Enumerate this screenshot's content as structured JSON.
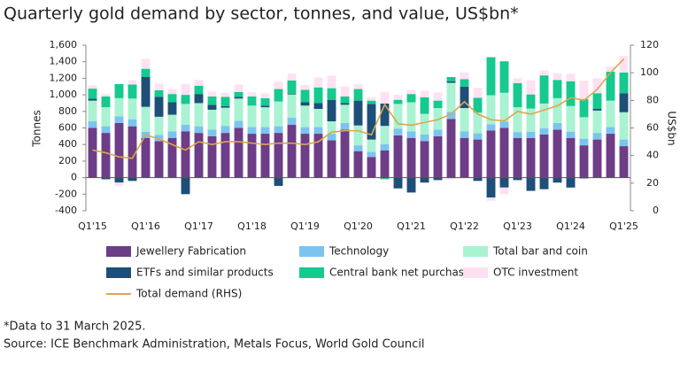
{
  "chart_data": {
    "type": "bar",
    "title": "Quarterly gold demand by sector, tonnes, and value, US$bn*",
    "ylabel": "Tonnes",
    "y2label": "US$bn",
    "categories": [
      "Q1'15",
      null,
      null,
      null,
      "Q1'16",
      null,
      null,
      null,
      "Q1'17",
      null,
      null,
      null,
      "Q1'18",
      null,
      null,
      null,
      "Q1'19",
      null,
      null,
      null,
      "Q1'20",
      null,
      null,
      null,
      "Q1'21",
      null,
      null,
      null,
      "Q1'22",
      null,
      null,
      null,
      "Q1'23",
      null,
      null,
      null,
      "Q1'24",
      null,
      null,
      null,
      "Q1'25"
    ],
    "ylim": [
      -400,
      1600
    ],
    "yticks": [
      -400,
      -200,
      0,
      200,
      400,
      600,
      800,
      {
        "value": 1000,
        "label": "1,000"
      },
      {
        "value": 1200,
        "label": "1,200"
      },
      {
        "value": 1400,
        "label": "1,400"
      },
      {
        "value": 1600,
        "label": "1,600"
      }
    ],
    "y2lim": [
      0,
      120
    ],
    "y2ticks": [
      0,
      20,
      40,
      60,
      80,
      100,
      120
    ],
    "series": [
      {
        "name": "Jewellery Fabrication",
        "color": "#6d3d87",
        "values": [
          600,
          540,
          660,
          620,
          480,
          440,
          480,
          560,
          540,
          500,
          540,
          600,
          530,
          530,
          540,
          640,
          530,
          530,
          450,
          580,
          320,
          250,
          330,
          510,
          480,
          440,
          500,
          710,
          480,
          460,
          570,
          600,
          480,
          480,
          520,
          580,
          480,
          390,
          460,
          530,
          380
        ]
      },
      {
        "name": "Technology",
        "color": "#7cc4f0",
        "values": [
          80,
          80,
          80,
          85,
          75,
          75,
          80,
          80,
          80,
          80,
          85,
          85,
          80,
          80,
          80,
          85,
          80,
          80,
          80,
          80,
          70,
          60,
          75,
          80,
          80,
          80,
          80,
          85,
          80,
          75,
          75,
          75,
          70,
          75,
          75,
          80,
          75,
          80,
          80,
          80,
          80
        ]
      },
      {
        "name": "Total bar and coin",
        "color": "#a9f2d2",
        "values": [
          250,
          230,
          220,
          250,
          300,
          220,
          200,
          250,
          280,
          240,
          220,
          270,
          260,
          240,
          300,
          280,
          260,
          220,
          150,
          220,
          240,
          150,
          220,
          300,
          350,
          250,
          260,
          350,
          280,
          250,
          350,
          350,
          300,
          280,
          300,
          300,
          310,
          260,
          270,
          320,
          330
        ]
      },
      {
        "name": "ETFs and similar products",
        "color": "#1d4f78",
        "values": [
          25,
          -20,
          -60,
          -40,
          360,
          240,
          150,
          -200,
          110,
          60,
          20,
          20,
          0,
          20,
          -100,
          10,
          40,
          70,
          260,
          20,
          300,
          430,
          270,
          -130,
          -180,
          -60,
          -30,
          20,
          260,
          -40,
          -240,
          -120,
          -30,
          -160,
          -140,
          -60,
          -120,
          -10,
          20,
          0,
          230
        ]
      },
      {
        "name": "Central bank net purchases",
        "color": "#15c98f",
        "values": [
          120,
          130,
          170,
          170,
          100,
          80,
          100,
          110,
          100,
          100,
          110,
          60,
          110,
          90,
          150,
          160,
          150,
          190,
          140,
          80,
          140,
          40,
          -20,
          50,
          100,
          200,
          90,
          50,
          90,
          180,
          460,
          380,
          290,
          170,
          340,
          220,
          300,
          220,
          190,
          350,
          250
        ]
      },
      {
        "name": "OTC investment",
        "color": "#fde1f3",
        "values": [
          40,
          30,
          -40,
          50,
          120,
          80,
          60,
          130,
          70,
          60,
          50,
          90,
          50,
          60,
          90,
          80,
          60,
          120,
          150,
          120,
          60,
          40,
          140,
          60,
          50,
          80,
          100,
          -20,
          80,
          120,
          -40,
          -80,
          60,
          170,
          60,
          80,
          90,
          220,
          180,
          60,
          200
        ]
      },
      {
        "name": "Total demand (RHS)",
        "color": "#dba74b",
        "axis": "y2",
        "values": [
          44,
          42,
          39,
          38,
          55,
          52,
          48,
          44,
          50,
          48,
          50,
          50,
          49,
          48,
          49,
          49,
          48,
          50,
          57,
          58,
          58,
          55,
          77,
          63,
          62,
          64,
          66,
          70,
          79,
          70,
          66,
          65,
          72,
          70,
          73,
          76,
          82,
          80,
          88,
          100,
          110
        ]
      }
    ],
    "notes": [
      "*Data to 31 March 2025.",
      "Source: ICE Benchmark Administration, Metals Focus, World Gold Council"
    ]
  }
}
